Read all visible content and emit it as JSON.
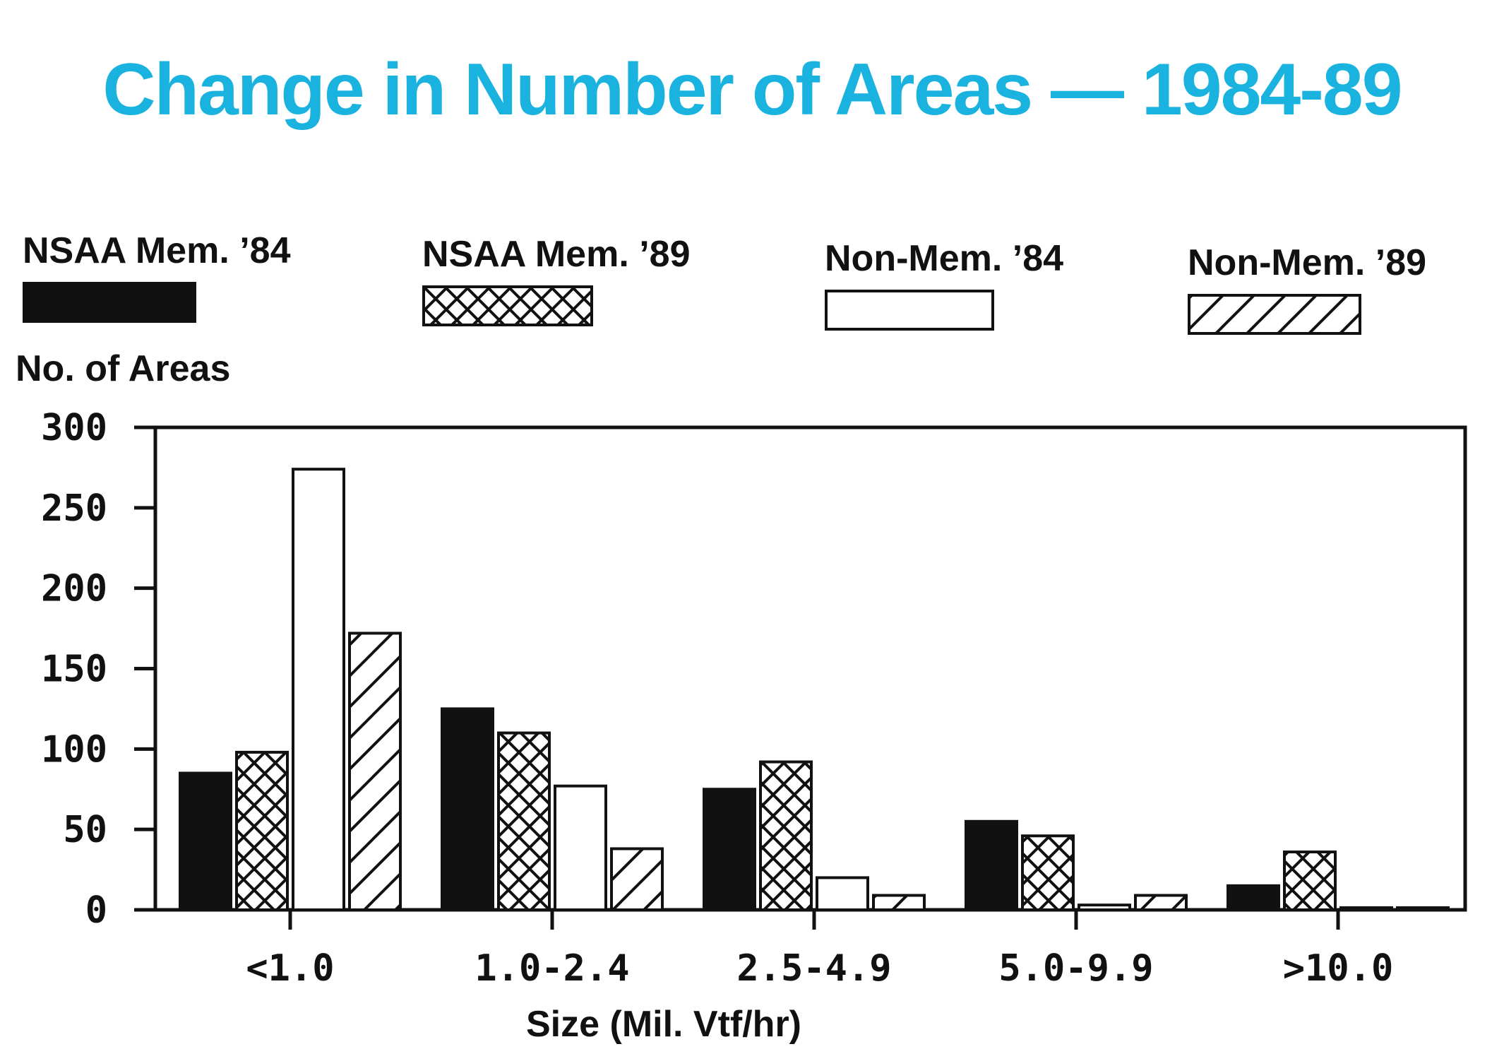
{
  "title": "Change in Number of Areas — 1984-89",
  "colors": {
    "title": "#1ab3e0",
    "ink": "#111111",
    "background": "#ffffff"
  },
  "legend": [
    {
      "label": "NSAA Mem. ’84",
      "pattern": "solid-black"
    },
    {
      "label": "NSAA Mem. ’89",
      "pattern": "crosshatch"
    },
    {
      "label": "Non-Mem. ’84",
      "pattern": "white"
    },
    {
      "label": "Non-Mem. ’89",
      "pattern": "diagonal-hatch"
    }
  ],
  "chart_data": {
    "type": "bar",
    "title": "Change in Number of Areas — 1984-89",
    "xlabel": "Size (Mil. Vtf/hr)",
    "ylabel": "No. of Areas",
    "categories": [
      "<1.0",
      "1.0-2.4",
      "2.5-4.9",
      "5.0-9.9",
      ">10.0"
    ],
    "yticks": [
      0,
      50,
      100,
      150,
      200,
      250,
      300
    ],
    "ylim": [
      0,
      300
    ],
    "series": [
      {
        "name": "NSAA Mem. ’84",
        "pattern": "solid-black",
        "values": [
          85,
          125,
          75,
          55,
          15
        ]
      },
      {
        "name": "NSAA Mem. ’89",
        "pattern": "crosshatch",
        "values": [
          98,
          110,
          92,
          46,
          36
        ]
      },
      {
        "name": "Non-Mem. ’84",
        "pattern": "white",
        "values": [
          274,
          77,
          20,
          3,
          0
        ]
      },
      {
        "name": "Non-Mem. ’89",
        "pattern": "diagonal-hatch",
        "values": [
          172,
          38,
          9,
          9,
          1
        ]
      }
    ],
    "grid": false,
    "legend_position": "top"
  }
}
